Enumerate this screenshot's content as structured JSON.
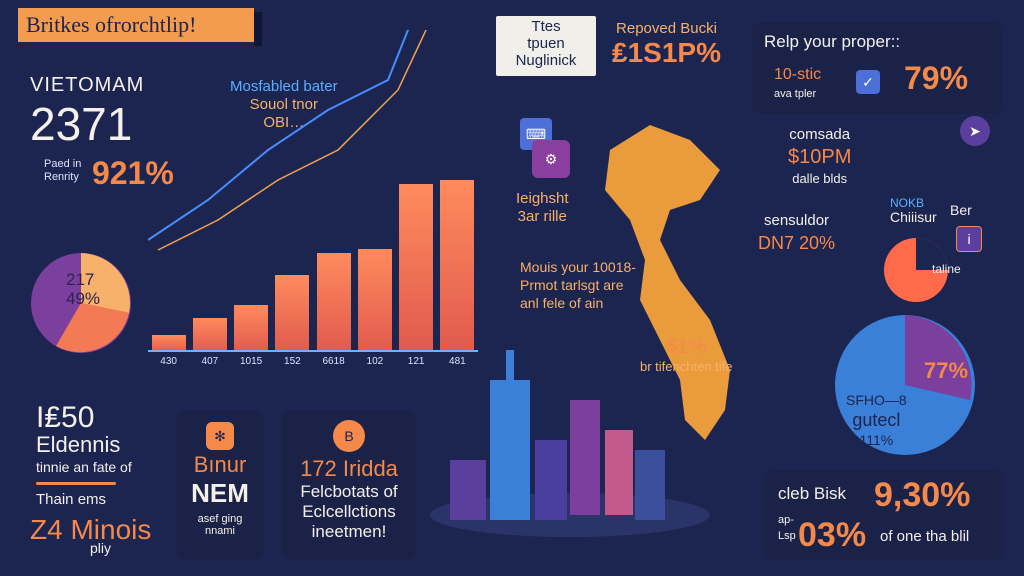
{
  "header": {
    "title": "Britkes ofrorchtlip!"
  },
  "left_stats": {
    "country": "VIETOMAM",
    "number": "2371",
    "label1": "Paed in",
    "label2": "Renrity",
    "percent": "921%"
  },
  "chart_annotation": {
    "line1": "Mosfabled bater",
    "line2": "Souol tnor",
    "line3": "OBI…"
  },
  "chart_data": {
    "type": "bar",
    "categories": [
      "430",
      "407",
      "1015",
      "152",
      "6618",
      "102",
      "121",
      "481"
    ],
    "values": [
      20,
      40,
      55,
      90,
      115,
      120,
      195,
      200
    ]
  },
  "bar_labels": [
    "",
    "",
    "",
    "",
    "",
    "",
    "",
    ""
  ],
  "top_mid": {
    "line1": "Ttes",
    "line2": "tpuen",
    "line3": "Nuglinick"
  },
  "reposed": {
    "label": "Repoved Bucki",
    "value": "₤1S1P%"
  },
  "property": {
    "title": "Relp your proper::",
    "small": "10-stic",
    "small2": "ava tpler",
    "percent": "79%"
  },
  "pie_left": {
    "line1": "217",
    "line2": "49%"
  },
  "mid_insight": {
    "line1": "Ieighsht",
    "line2": "3ar rille"
  },
  "comsada": {
    "line1": "comsada",
    "line2": "$10PM",
    "line3": "dalle blds"
  },
  "sensuldor": {
    "line1": "sensuldor",
    "line2": "DN7 20%"
  },
  "nokb": {
    "line1": "NOKB",
    "line2": "Chiiisur",
    "line3": "Ber",
    "line4": "taline"
  },
  "mouis": {
    "line1": "Mouis your 10018-",
    "line2": "Prmot tarlsgt are",
    "line3": "anl fele of ain"
  },
  "small_pct": {
    "line1": "$1%",
    "line2": "br tifenchten tife"
  },
  "pie_right": {
    "line1": "77%",
    "line2": "SFHO—8",
    "line3": "gutecl",
    "line4": "111%"
  },
  "bottom_left": {
    "line1": "I₤50",
    "line2": "Eldennis",
    "line3": "tinnie an fate of",
    "line4": "Thain ems",
    "line5": "Ζ4 Minois",
    "line6": "pliy"
  },
  "bottom_mid1": {
    "line1": "Bınur",
    "line2": "NEM",
    "line3": "asef ging",
    "line4": "nnami"
  },
  "bottom_mid2": {
    "line1": "172 Iridda",
    "line2": "Felcbotats of",
    "line3": "Eclcellctions",
    "line4": "ineetmen!"
  },
  "bottom_right": {
    "line1": "cleb Bisk",
    "line2": "9,30%",
    "line3": "ap-",
    "line4": "03%",
    "line5": "of one tha blil",
    "line6": "Lsp"
  }
}
